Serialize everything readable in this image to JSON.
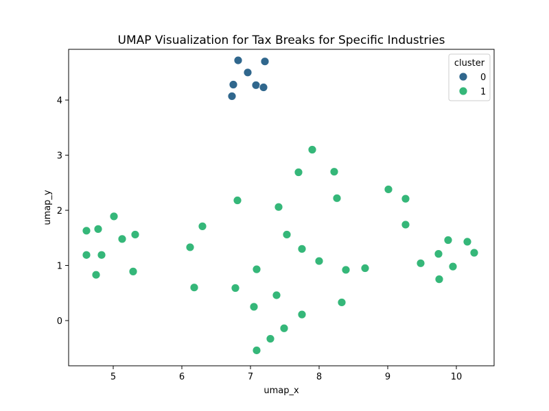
{
  "chart_data": {
    "type": "scatter",
    "title": "UMAP Visualization for Tax Breaks for Specific Industries",
    "xlabel": "umap_x",
    "ylabel": "umap_y",
    "xlim": [
      4.35,
      10.55
    ],
    "ylim": [
      -0.82,
      4.92
    ],
    "xticks": [
      5,
      6,
      7,
      8,
      9,
      10
    ],
    "yticks": [
      0,
      1,
      2,
      3,
      4
    ],
    "grid": false,
    "legend": {
      "title": "cluster",
      "position": "top-right"
    },
    "series": [
      {
        "name": "0",
        "color": "#30678d",
        "points": [
          [
            6.82,
            4.72
          ],
          [
            7.21,
            4.7
          ],
          [
            6.96,
            4.5
          ],
          [
            6.75,
            4.28
          ],
          [
            7.08,
            4.27
          ],
          [
            7.19,
            4.23
          ],
          [
            6.73,
            4.07
          ]
        ]
      },
      {
        "name": "1",
        "color": "#35b779",
        "points": [
          [
            4.61,
            1.63
          ],
          [
            4.78,
            1.66
          ],
          [
            5.01,
            1.89
          ],
          [
            5.13,
            1.48
          ],
          [
            5.32,
            1.56
          ],
          [
            4.61,
            1.19
          ],
          [
            4.83,
            1.19
          ],
          [
            4.75,
            0.83
          ],
          [
            5.29,
            0.89
          ],
          [
            6.12,
            1.33
          ],
          [
            6.3,
            1.71
          ],
          [
            6.18,
            0.6
          ],
          [
            6.81,
            2.18
          ],
          [
            6.78,
            0.59
          ],
          [
            7.09,
            0.93
          ],
          [
            7.05,
            0.25
          ],
          [
            7.38,
            0.46
          ],
          [
            7.41,
            2.06
          ],
          [
            7.53,
            1.56
          ],
          [
            7.7,
            2.69
          ],
          [
            7.9,
            3.1
          ],
          [
            7.75,
            1.3
          ],
          [
            7.75,
            0.11
          ],
          [
            7.49,
            -0.14
          ],
          [
            7.29,
            -0.33
          ],
          [
            7.09,
            -0.54
          ],
          [
            8.0,
            1.08
          ],
          [
            8.22,
            2.7
          ],
          [
            8.26,
            2.22
          ],
          [
            8.39,
            0.92
          ],
          [
            8.33,
            0.33
          ],
          [
            8.67,
            0.95
          ],
          [
            9.01,
            2.38
          ],
          [
            9.26,
            2.21
          ],
          [
            9.26,
            1.74
          ],
          [
            9.48,
            1.04
          ],
          [
            9.74,
            1.21
          ],
          [
            9.88,
            1.46
          ],
          [
            9.95,
            0.98
          ],
          [
            9.75,
            0.75
          ],
          [
            10.16,
            1.43
          ],
          [
            10.26,
            1.23
          ]
        ]
      }
    ]
  }
}
